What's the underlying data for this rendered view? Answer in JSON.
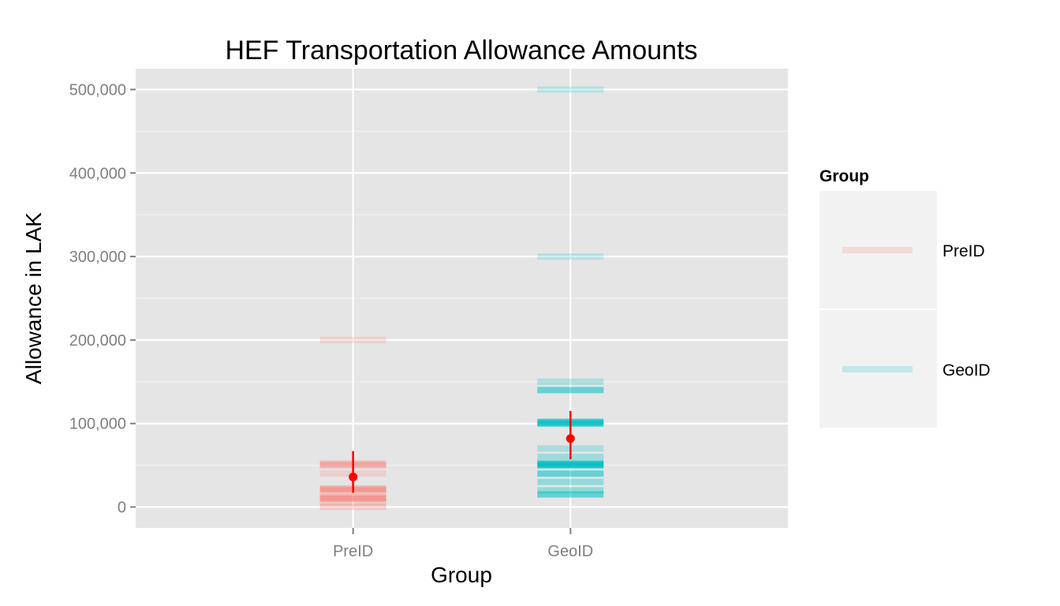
{
  "chart_data": {
    "type": "scatter",
    "title": "HEF Transportation Allowance Amounts",
    "xlabel": "Group",
    "ylabel": "Allowance in LAK",
    "categories": [
      "PreID",
      "GeoID"
    ],
    "ylim": [
      -25000,
      525000
    ],
    "yticks": [
      0,
      100000,
      200000,
      300000,
      400000,
      500000
    ],
    "ytick_labels": [
      "0",
      "100,000",
      "200,000",
      "300,000",
      "400,000",
      "500,000"
    ],
    "grid": true,
    "legend": {
      "title": "Group",
      "position": "right",
      "entries": [
        {
          "label": "PreID",
          "color": "#F8766D"
        },
        {
          "label": "GeoID",
          "color": "#00BFC4"
        }
      ]
    },
    "series": [
      {
        "name": "PreID",
        "color": "#F8766D",
        "values": [
          0,
          5000,
          10000,
          12000,
          20000,
          22000,
          40000,
          50000,
          52000,
          200000
        ],
        "alphas": [
          0.25,
          0.25,
          0.45,
          0.45,
          0.45,
          0.45,
          0.2,
          0.35,
          0.35,
          0.2
        ],
        "mean": 36000,
        "ci": [
          17000,
          67000
        ]
      },
      {
        "name": "GeoID",
        "color": "#00BFC4",
        "values": [
          15000,
          20000,
          30000,
          40000,
          50000,
          52000,
          60000,
          70000,
          100000,
          102000,
          140000,
          150000,
          300000,
          500000
        ],
        "alphas": [
          0.55,
          0.35,
          0.35,
          0.55,
          0.8,
          0.8,
          0.3,
          0.25,
          0.7,
          0.7,
          0.55,
          0.25,
          0.2,
          0.2
        ],
        "mean": 82000,
        "ci": [
          57000,
          115000
        ]
      }
    ],
    "summary_color": "#FF0000"
  }
}
